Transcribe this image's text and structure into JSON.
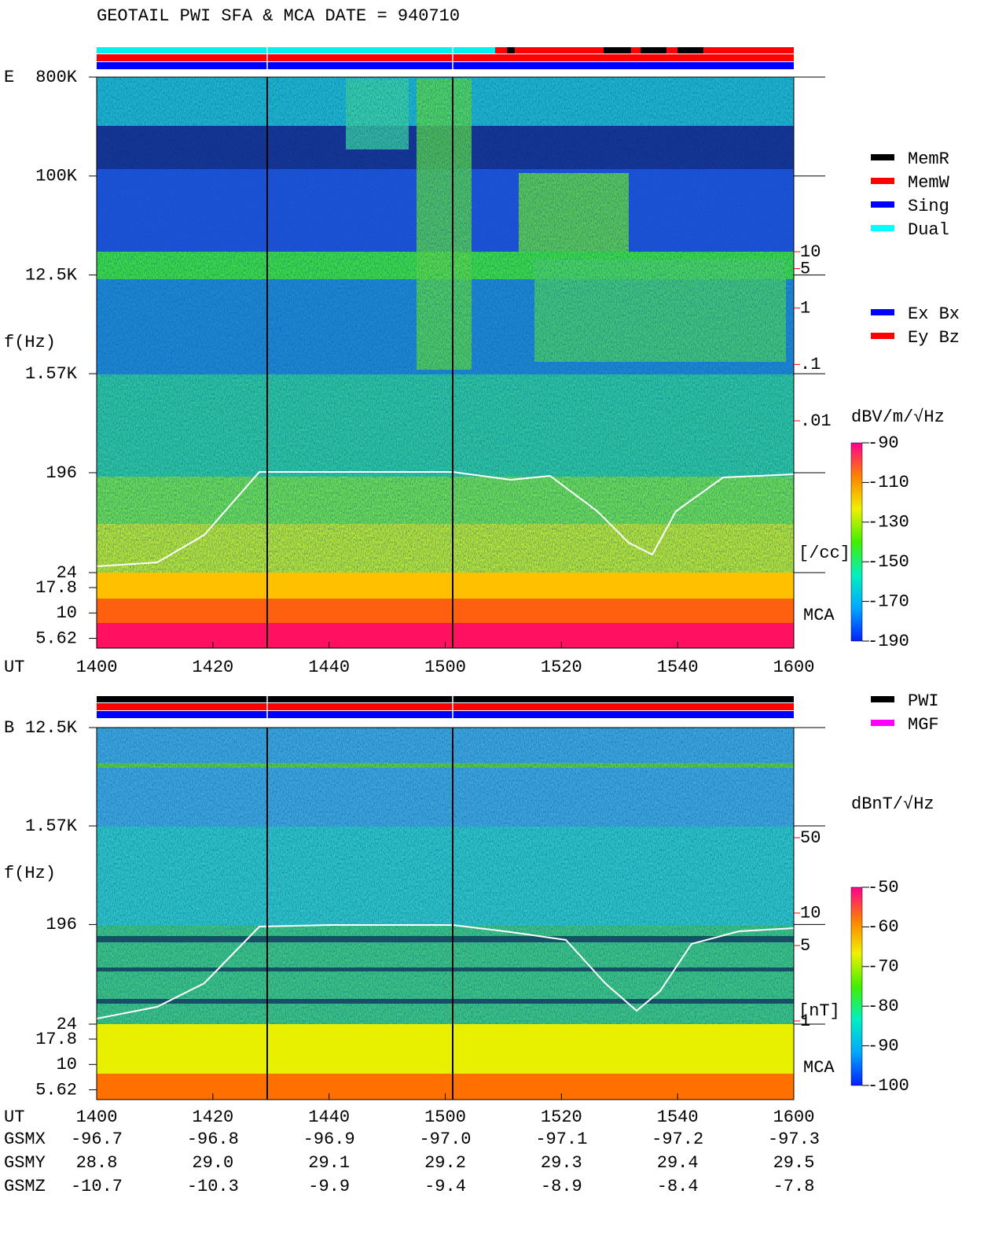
{
  "chart_data": [
    {
      "type": "spectrogram",
      "title": "GEOTAIL  PWI SFA & MCA   DATE = 940710",
      "panel": "E",
      "ylabel": "f(Hz)",
      "xlabel": "UT",
      "categories": [
        "1400",
        "1420",
        "1440",
        "1500",
        "1520",
        "1540",
        "1600"
      ],
      "log_y": true,
      "ylim": [
        24,
        800000
      ],
      "yticks": [
        {
          "value": 800000,
          "label": "800K"
        },
        {
          "value": 100000,
          "label": "100K"
        },
        {
          "value": 12500,
          "label": "12.5K"
        },
        {
          "value": 1570,
          "label": "1.57K"
        },
        196,
        24
      ],
      "mca_label": "MCA",
      "mca_ylim": [
        4.5,
        25
      ],
      "mca_yticks": [
        17.8,
        10,
        5.62
      ],
      "y2label": "[/cc]",
      "y2lim": [
        0.01,
        10
      ],
      "y2ticks": [
        10,
        5,
        1,
        {
          "value": 0.1,
          "label": ".1"
        },
        {
          "value": 0.01,
          "label": ".01"
        }
      ],
      "y2color": "#ff0000",
      "colorbar": {
        "label": "dBV/m/√Hz",
        "lim": [
          -190,
          -90
        ],
        "ticks": [
          -90,
          -110,
          -130,
          -150,
          -170,
          -190
        ],
        "colors": [
          "#0020ff",
          "#00a8ff",
          "#00f0c0",
          "#40f000",
          "#f0f000",
          "#ff8000",
          "#ff0090"
        ]
      },
      "legends": [
        [
          {
            "name": "MemR",
            "color": "#000000"
          },
          {
            "name": "MemW",
            "color": "#ff0000"
          },
          {
            "name": "Sing",
            "color": "#0000ff"
          },
          {
            "name": "Dual",
            "color": "#00ffff"
          }
        ],
        [
          {
            "name": "Ex Bx",
            "color": "#0000ff"
          },
          {
            "name": "Ey Bz",
            "color": "#ff0000"
          }
        ]
      ]
    },
    {
      "type": "spectrogram",
      "panel": "B",
      "ylabel": "f(Hz)",
      "xlabel": "UT",
      "categories": [
        "1400",
        "1420",
        "1440",
        "1500",
        "1520",
        "1540",
        "1600"
      ],
      "log_y": true,
      "ylim": [
        24,
        12500
      ],
      "yticks": [
        {
          "value": 12500,
          "label": "12.5K"
        },
        {
          "value": 1570,
          "label": "1.57K"
        },
        196,
        24
      ],
      "mca_label": "MCA",
      "mca_ylim": [
        4.5,
        25
      ],
      "mca_yticks": [
        17.8,
        10,
        5.62
      ],
      "y2label": "[nT]",
      "y2lim": [
        1,
        50
      ],
      "y2ticks": [
        50,
        10,
        5,
        1
      ],
      "y2color": "#ff0000",
      "colorbar": {
        "label": "dBnT/√Hz",
        "lim": [
          -100,
          -50
        ],
        "ticks": [
          -50,
          -60,
          -70,
          -80,
          -90,
          -100
        ],
        "colors": [
          "#0020ff",
          "#00a8ff",
          "#00f0c0",
          "#40f000",
          "#f0f000",
          "#ff8000",
          "#ff0090"
        ]
      },
      "legends": [
        [
          {
            "name": "PWI",
            "color": "#000000"
          },
          {
            "name": "MGF",
            "color": "#ff00ff"
          }
        ]
      ]
    }
  ],
  "orbit": {
    "rows": [
      {
        "name": "GSMX",
        "values": [
          "-96.7",
          "-96.8",
          "-96.9",
          "-97.0",
          "-97.1",
          "-97.2",
          "-97.3"
        ]
      },
      {
        "name": "GSMY",
        "values": [
          "28.8",
          "29.0",
          "29.1",
          "29.2",
          "29.3",
          "29.4",
          "29.5"
        ]
      },
      {
        "name": "GSMZ",
        "values": [
          "-10.7",
          "-10.3",
          "-9.9",
          "-9.4",
          "-8.9",
          "-8.4",
          "-7.8"
        ]
      }
    ]
  }
}
